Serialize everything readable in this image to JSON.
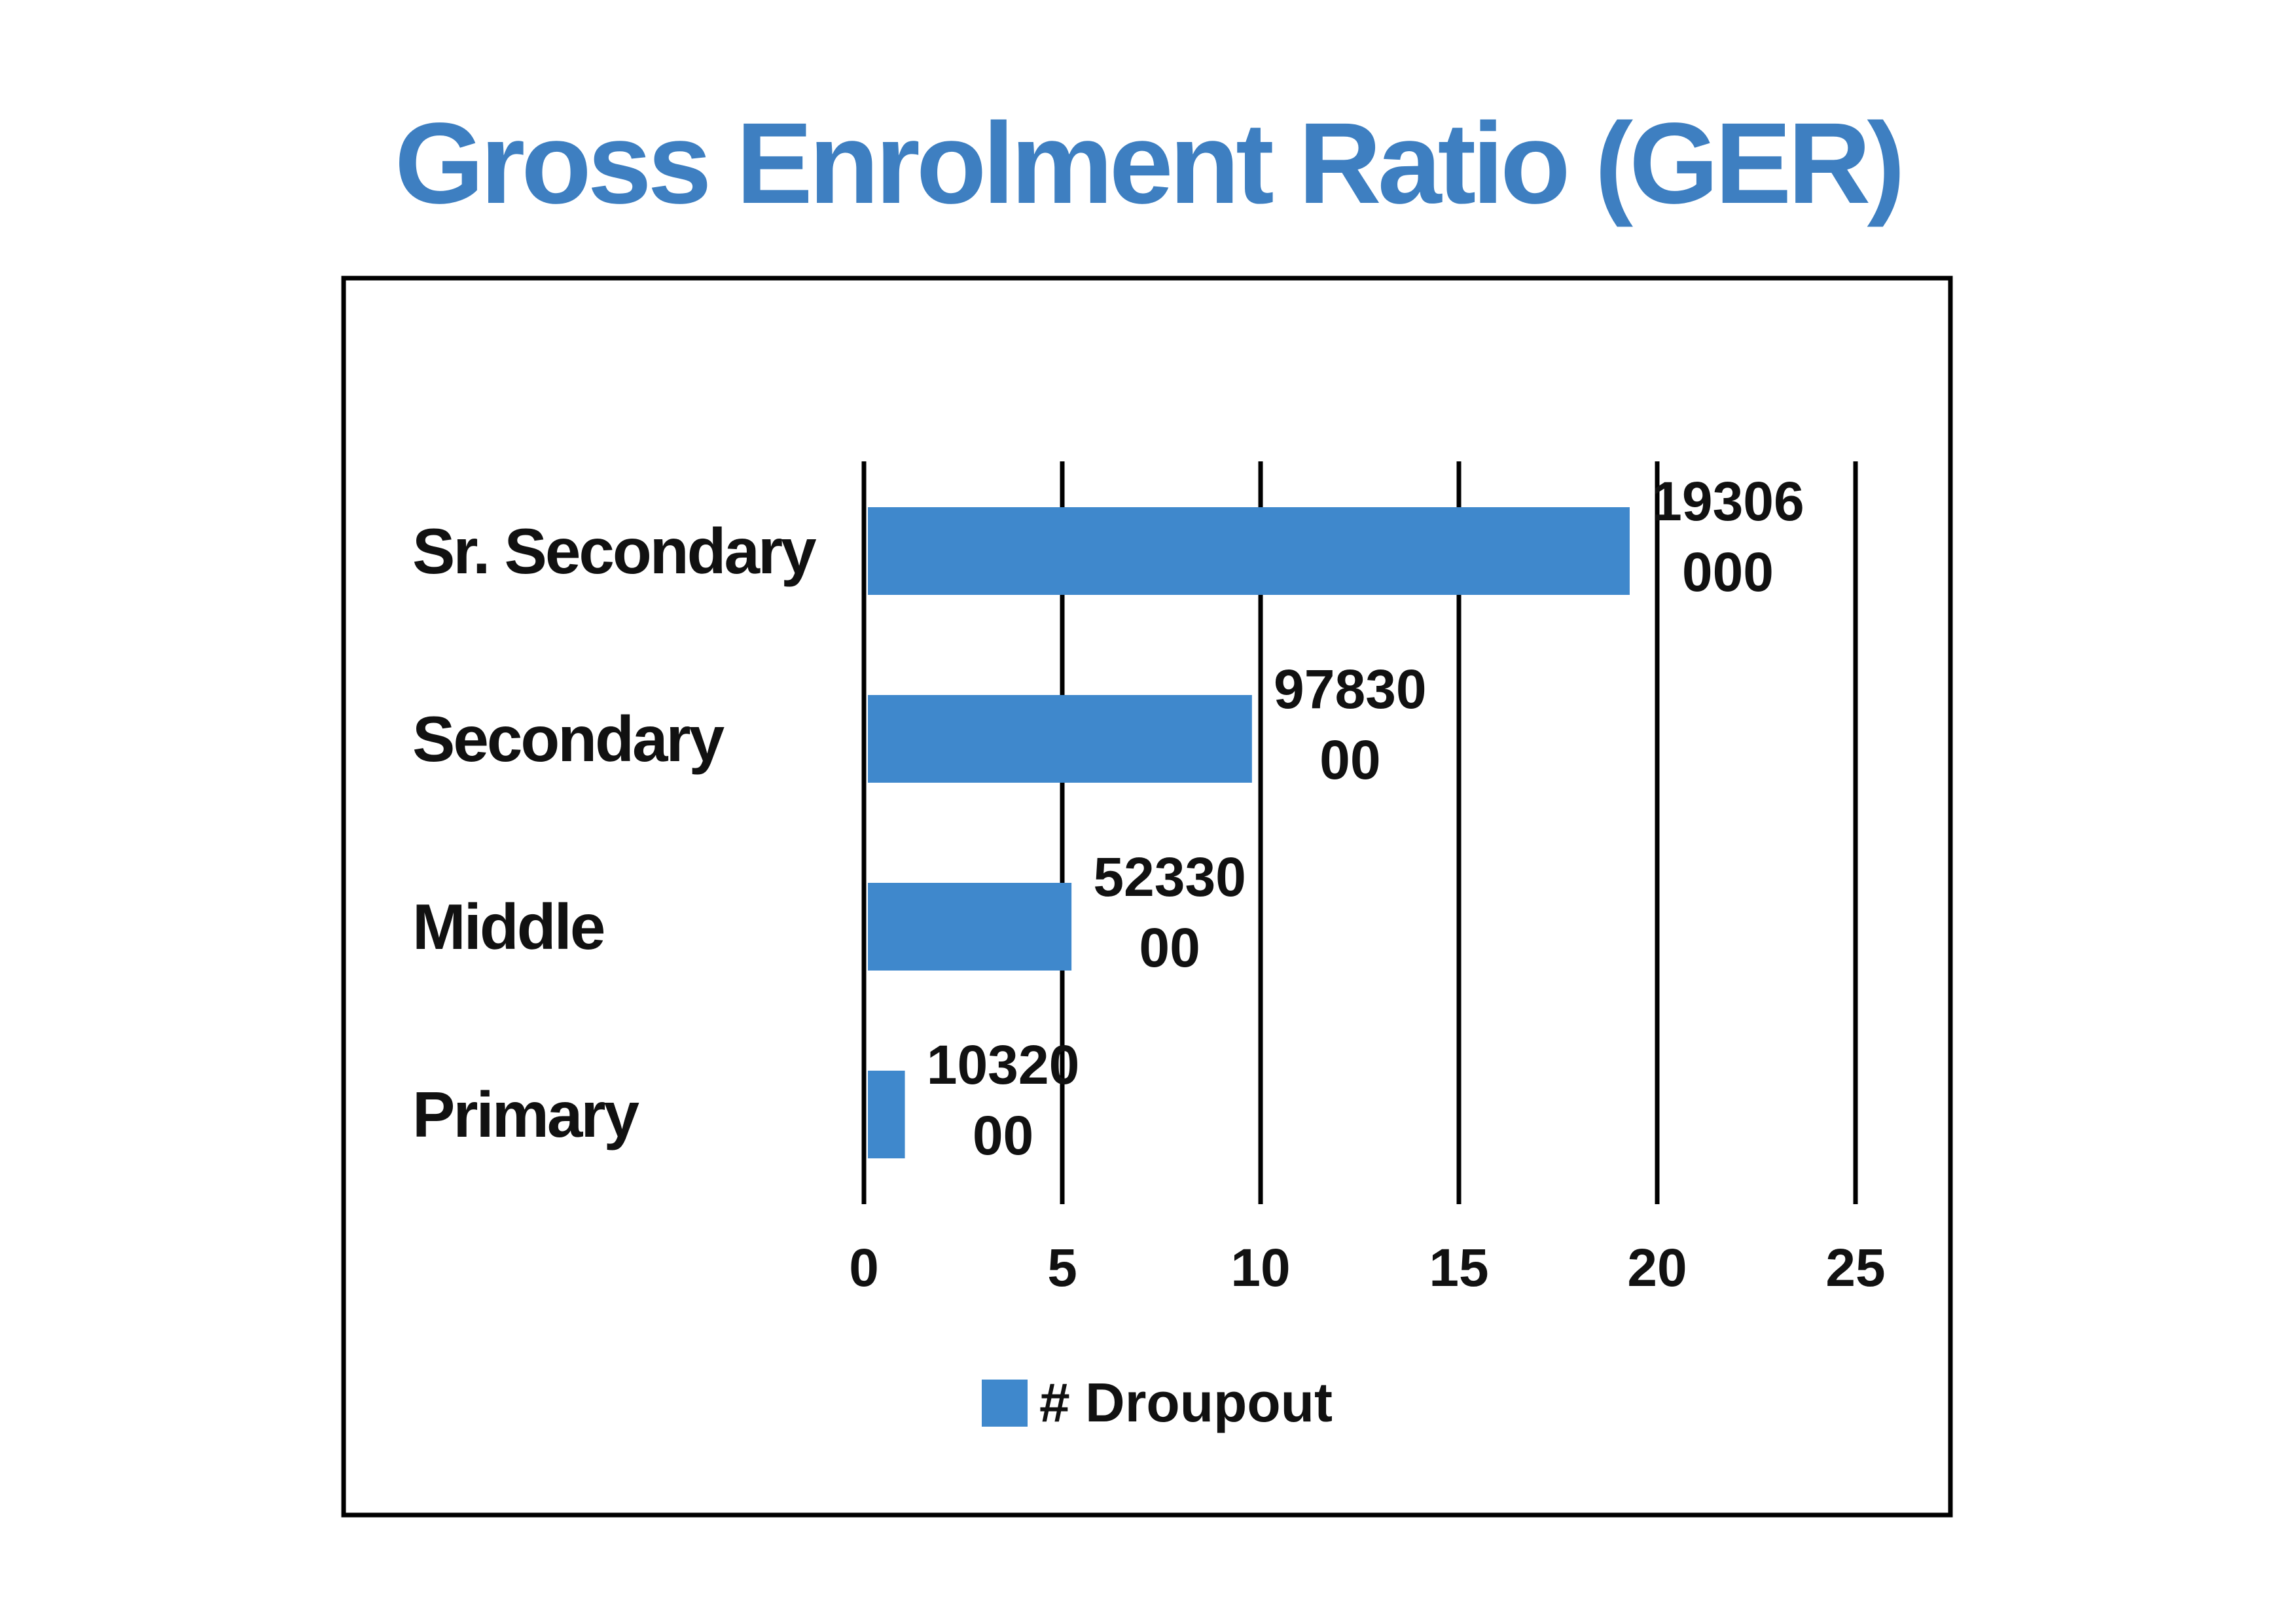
{
  "chart_data": {
    "type": "bar",
    "orientation": "horizontal",
    "title": "Gross Enrolment Ratio (GER)",
    "categories": [
      "Sr. Secondary",
      "Secondary",
      "Middle",
      "Primary"
    ],
    "series": [
      {
        "name": "# Droupout",
        "values": [
          19.306,
          9.783,
          5.233,
          1.032
        ],
        "data_labels": [
          [
            "19306",
            "000"
          ],
          [
            "97830",
            "00"
          ],
          [
            "52330",
            "00"
          ],
          [
            "10320",
            "00"
          ]
        ]
      }
    ],
    "xlim": [
      0,
      25
    ],
    "x_ticks": [
      "0",
      "5",
      "10",
      "15",
      "20",
      "25"
    ],
    "xlabel": "",
    "ylabel": "",
    "grid": "vertical",
    "legend_position": "bottom",
    "colors": {
      "bar": "#3f88cc",
      "title": "#3e7fc1",
      "frame": "#000000",
      "grid": "#000000",
      "text": "#111111"
    }
  }
}
